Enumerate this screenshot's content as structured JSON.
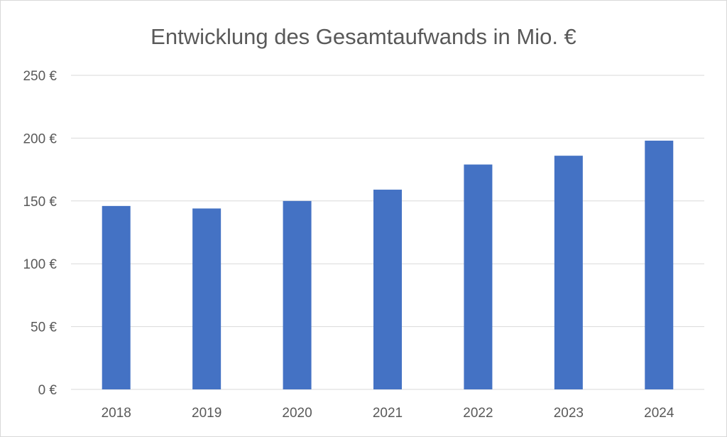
{
  "chart_data": {
    "type": "bar",
    "title": "Entwicklung des Gesamtaufwands in Mio. €",
    "xlabel": "",
    "ylabel": "",
    "categories": [
      "2018",
      "2019",
      "2020",
      "2021",
      "2022",
      "2023",
      "2024"
    ],
    "values": [
      146,
      144,
      150,
      159,
      179,
      186,
      198
    ],
    "ylim": [
      0,
      250
    ],
    "yticks": [
      0,
      50,
      100,
      150,
      200,
      250
    ],
    "ytick_labels": [
      "0 €",
      "50 €",
      "100 €",
      "150 €",
      "200 €",
      "250 €"
    ],
    "grid": "horizontal",
    "legend": "none",
    "colors": {
      "bar": "#4472C4",
      "grid": "#d9d9d9",
      "text": "#595959"
    }
  }
}
